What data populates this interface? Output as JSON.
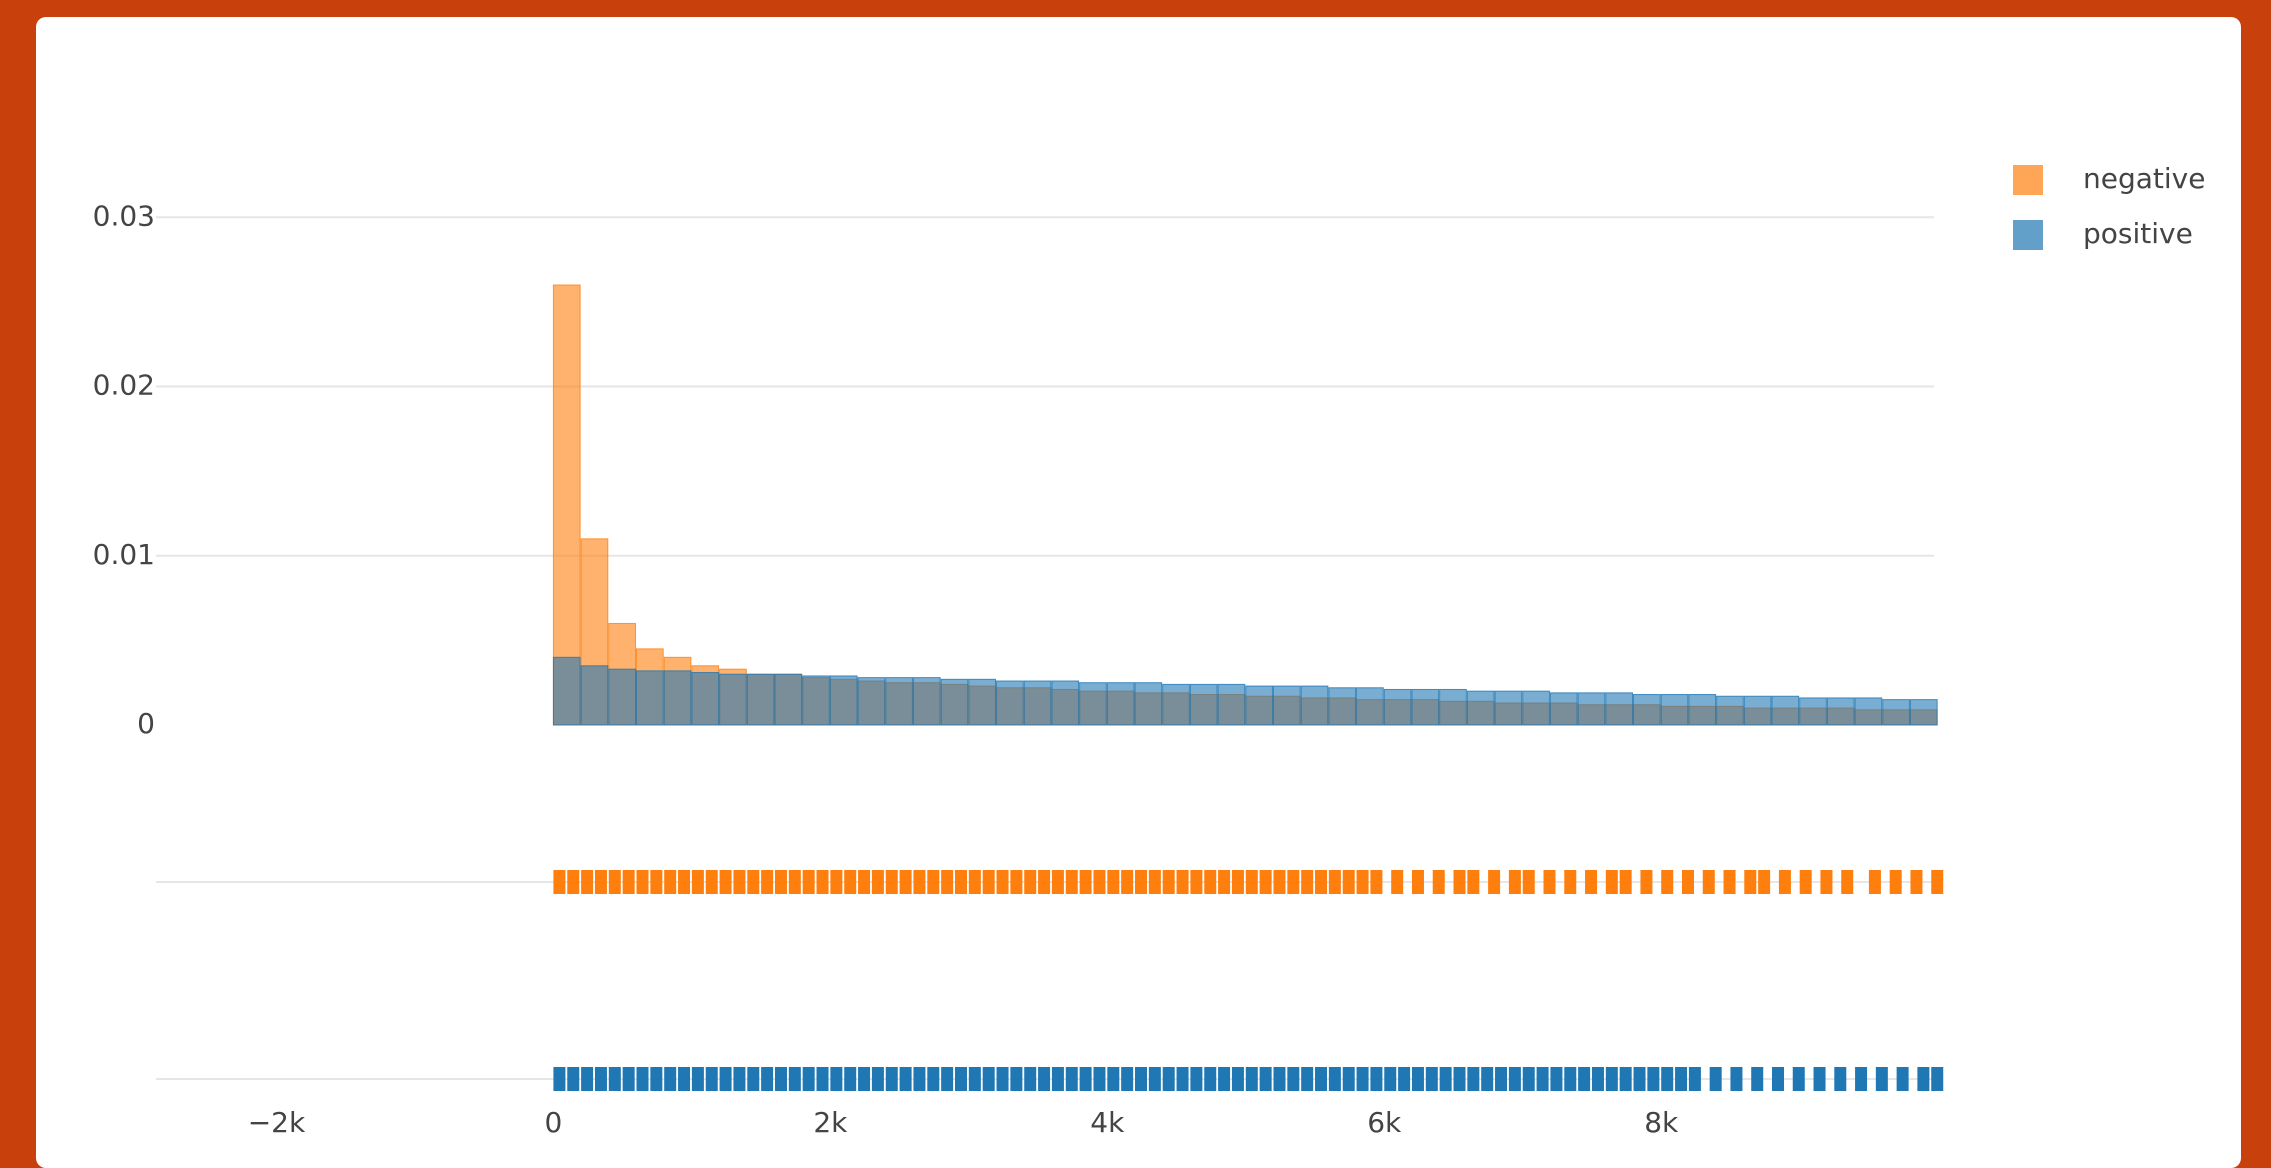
{
  "chart_data": {
    "type": "histogram",
    "bins": [
      0,
      200,
      400,
      600,
      800,
      1000,
      1200,
      1400,
      1600,
      1800,
      2000,
      2200,
      2400,
      2600,
      2800,
      3000,
      3200,
      3400,
      3600,
      3800,
      4000,
      4200,
      4400,
      4600,
      4800,
      5000,
      5200,
      5400,
      5600,
      5800,
      6000,
      6200,
      6400,
      6600,
      6800,
      7000,
      7200,
      7400,
      7600,
      7800,
      8000,
      8200,
      8400,
      8600,
      8800,
      9000,
      9200,
      9400,
      9600,
      9800,
      10000
    ],
    "series": [
      {
        "name": "negative",
        "color": "#ff7f0e",
        "values": [
          0.026,
          0.011,
          0.006,
          0.0045,
          0.004,
          0.0035,
          0.0033,
          0.003,
          0.003,
          0.0028,
          0.0027,
          0.0026,
          0.0025,
          0.0025,
          0.0024,
          0.0023,
          0.0022,
          0.0022,
          0.0021,
          0.002,
          0.002,
          0.0019,
          0.0019,
          0.0018,
          0.0018,
          0.0017,
          0.0017,
          0.0016,
          0.0016,
          0.0015,
          0.0015,
          0.0015,
          0.0014,
          0.0014,
          0.0013,
          0.0013,
          0.0013,
          0.0012,
          0.0012,
          0.0012,
          0.0011,
          0.0011,
          0.0011,
          0.001,
          0.001,
          0.001,
          0.001,
          0.0009,
          0.0009,
          0.0009
        ],
        "rug": [
          0,
          100,
          200,
          300,
          400,
          500,
          600,
          700,
          800,
          900,
          1000,
          1100,
          1200,
          1300,
          1400,
          1500,
          1600,
          1700,
          1800,
          1900,
          2000,
          2100,
          2200,
          2300,
          2400,
          2500,
          2600,
          2700,
          2800,
          2900,
          3000,
          3100,
          3200,
          3300,
          3400,
          3500,
          3600,
          3700,
          3800,
          3900,
          4000,
          4100,
          4200,
          4300,
          4400,
          4500,
          4600,
          4700,
          4800,
          4900,
          5000,
          5100,
          5200,
          5300,
          5400,
          5500,
          5600,
          5700,
          5800,
          5900,
          6050,
          6200,
          6350,
          6500,
          6600,
          6750,
          6900,
          7000,
          7150,
          7300,
          7450,
          7600,
          7700,
          7850,
          8000,
          8150,
          8300,
          8450,
          8600,
          8700,
          8850,
          9000,
          9150,
          9300,
          9500,
          9650,
          9800,
          9950
        ]
      },
      {
        "name": "positive",
        "color": "#1f77b4",
        "values": [
          0.004,
          0.0035,
          0.0033,
          0.0032,
          0.0032,
          0.0031,
          0.003,
          0.003,
          0.003,
          0.0029,
          0.0029,
          0.0028,
          0.0028,
          0.0028,
          0.0027,
          0.0027,
          0.0026,
          0.0026,
          0.0026,
          0.0025,
          0.0025,
          0.0025,
          0.0024,
          0.0024,
          0.0024,
          0.0023,
          0.0023,
          0.0023,
          0.0022,
          0.0022,
          0.0021,
          0.0021,
          0.0021,
          0.002,
          0.002,
          0.002,
          0.0019,
          0.0019,
          0.0019,
          0.0018,
          0.0018,
          0.0018,
          0.0017,
          0.0017,
          0.0017,
          0.0016,
          0.0016,
          0.0016,
          0.0015,
          0.0015
        ],
        "rug": [
          0,
          100,
          200,
          300,
          400,
          500,
          600,
          700,
          800,
          900,
          1000,
          1100,
          1200,
          1300,
          1400,
          1500,
          1600,
          1700,
          1800,
          1900,
          2000,
          2100,
          2200,
          2300,
          2400,
          2500,
          2600,
          2700,
          2800,
          2900,
          3000,
          3100,
          3200,
          3300,
          3400,
          3500,
          3600,
          3700,
          3800,
          3900,
          4000,
          4100,
          4200,
          4300,
          4400,
          4500,
          4600,
          4700,
          4800,
          4900,
          5000,
          5100,
          5200,
          5300,
          5400,
          5500,
          5600,
          5700,
          5800,
          5900,
          6000,
          6100,
          6200,
          6300,
          6400,
          6500,
          6600,
          6700,
          6800,
          6900,
          7000,
          7100,
          7200,
          7300,
          7400,
          7500,
          7600,
          7700,
          7800,
          7900,
          8000,
          8100,
          8200,
          8350,
          8500,
          8650,
          8800,
          8950,
          9100,
          9250,
          9400,
          9550,
          9700,
          9850,
          9950
        ]
      }
    ],
    "xlim": [
      -2870,
      9970
    ],
    "xticks": [
      {
        "value": -2000,
        "label": "−2k"
      },
      0,
      {
        "value": 2000,
        "label": "2k"
      },
      {
        "value": 4000,
        "label": "4k"
      },
      {
        "value": 6000,
        "label": "6k"
      },
      {
        "value": 8000,
        "label": "8k"
      }
    ],
    "ylim": [
      0,
      0.0377
    ],
    "yticks": [
      0,
      0.01,
      0.02,
      0.03
    ],
    "grid": true,
    "legend": "top right"
  }
}
